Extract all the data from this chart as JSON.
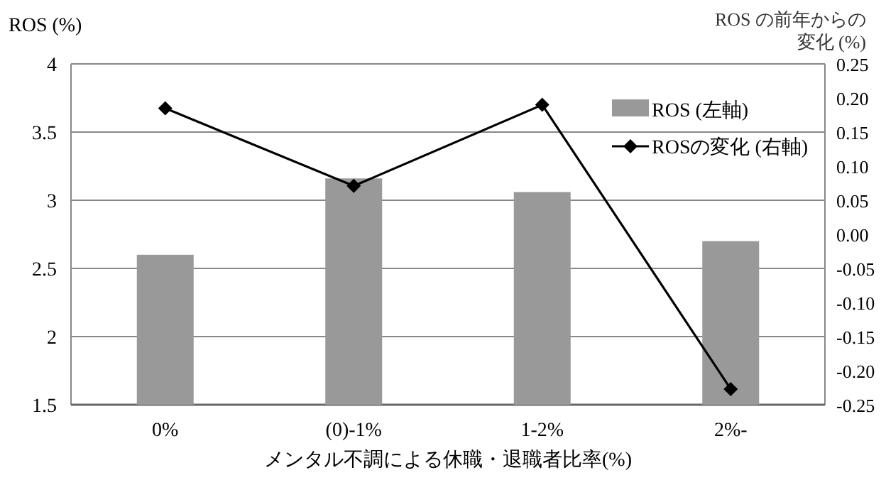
{
  "chart_data": {
    "type": "bar",
    "categories": [
      "0%",
      "(0)-1%",
      "1-2%",
      "2%-"
    ],
    "xlabel": "メンタル不調による休職・退職者比率(%)",
    "ylabel": "ROS (%)",
    "y2label": "ROS の前年からの変化 (%)",
    "ylim": [
      1.5,
      4
    ],
    "yticks": [
      1.5,
      2,
      2.5,
      3,
      3.5,
      4
    ],
    "y2lim": [
      -0.25,
      0.25
    ],
    "y2ticks": [
      {
        "value": -0.25,
        "label": "-0.25"
      },
      {
        "value": -0.2,
        "label": "-0.20"
      },
      {
        "value": -0.15,
        "label": "-0.15"
      },
      {
        "value": -0.1,
        "label": "-0.10"
      },
      {
        "value": -0.05,
        "label": "-0.05"
      },
      {
        "value": 0,
        "label": "0.00"
      },
      {
        "value": 0.05,
        "label": "0.05"
      },
      {
        "value": 0.1,
        "label": "0.10"
      },
      {
        "value": 0.15,
        "label": "0.15"
      },
      {
        "value": 0.2,
        "label": "0.20"
      },
      {
        "value": 0.25,
        "label": "0.25"
      }
    ],
    "series": [
      {
        "name": "ROS (左軸)",
        "color": "#999999",
        "values": [
          2.6,
          3.16,
          3.06,
          2.7
        ]
      },
      {
        "name": "ROSの変化 (右軸)",
        "type": "line",
        "axis": "y2",
        "color": "#000000",
        "marker": "diamond",
        "values": [
          0.185,
          0.071,
          0.19,
          -0.227
        ]
      }
    ],
    "grid": "y",
    "legend": "top right"
  }
}
